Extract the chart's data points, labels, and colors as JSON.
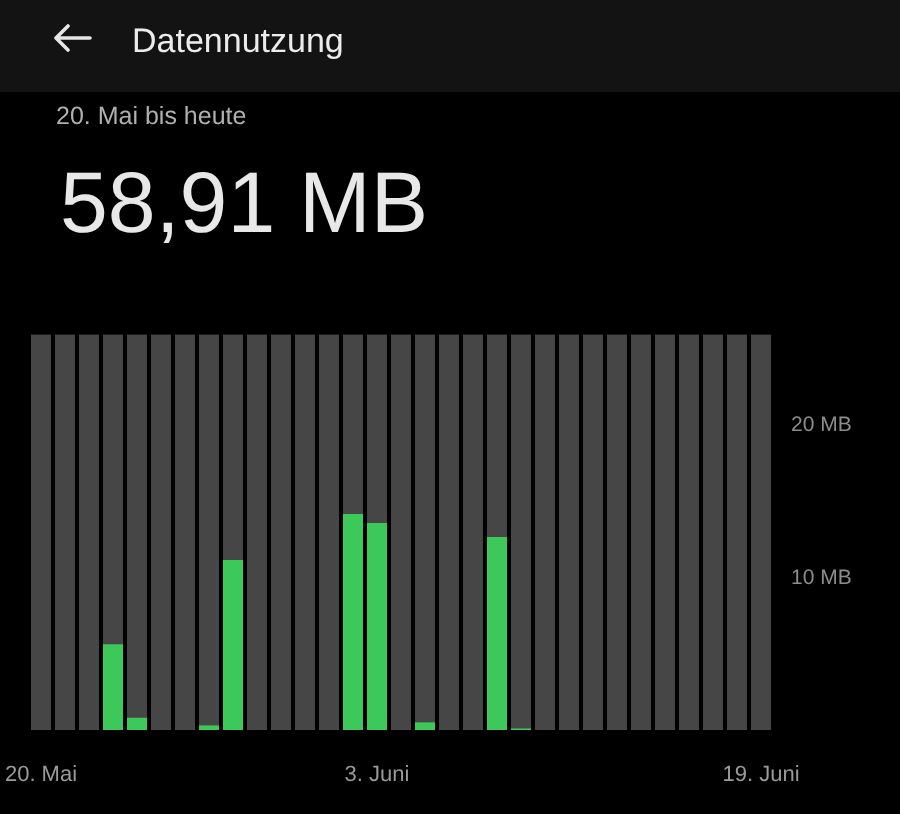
{
  "chart_data": {
    "type": "bar",
    "title": "Datennutzung",
    "subtitle": "20. Mai bis heute",
    "annotations": [
      "58,91 MB"
    ],
    "categories": [
      "20. Mai",
      null,
      null,
      null,
      null,
      null,
      null,
      null,
      null,
      null,
      null,
      null,
      null,
      null,
      "3. Juni",
      null,
      null,
      null,
      null,
      null,
      null,
      null,
      null,
      null,
      null,
      null,
      null,
      null,
      null,
      null,
      "19. Juni"
    ],
    "values": [
      0,
      0,
      0,
      5.6,
      0.8,
      0,
      0,
      0.3,
      11.1,
      0,
      0,
      0,
      0,
      14.1,
      13.5,
      0,
      0.5,
      0,
      0,
      12.6,
      0.1,
      0,
      0,
      0,
      0,
      0,
      0,
      0,
      0,
      0,
      0
    ],
    "color": "#3dc85a",
    "ylim": [
      0,
      25.8
    ],
    "yticks": [
      {
        "value": 10,
        "label": "10 MB"
      },
      {
        "value": 20,
        "label": "20 MB"
      }
    ]
  }
}
